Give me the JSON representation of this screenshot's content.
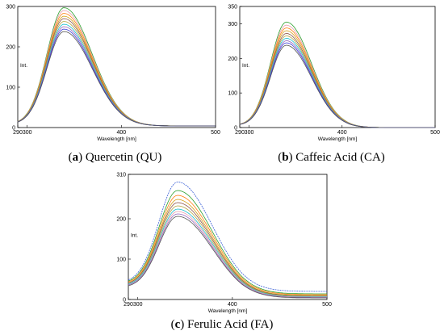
{
  "chart_data": [
    {
      "id": "qu",
      "type": "line",
      "panel_label": "a",
      "caption": "Quercetin (QU)",
      "xlabel": "Wavelength [nm]",
      "ylabel": "Int.",
      "xlim": [
        290,
        500
      ],
      "ylim": [
        0,
        300
      ],
      "xticks": [
        290,
        300,
        400,
        500
      ],
      "yticks": [
        0,
        100,
        200,
        300
      ],
      "peak_x": 339,
      "sigma_left": 18,
      "sigma_right": 30,
      "series": [
        {
          "color": "#2ca02c",
          "peak": 297,
          "baseline": 8,
          "tail": 4
        },
        {
          "color": "#e8a0b0",
          "peak": 290,
          "baseline": 8,
          "tail": 4
        },
        {
          "color": "#ff7f0e",
          "peak": 283,
          "baseline": 8,
          "tail": 4
        },
        {
          "color": "#d4a017",
          "peak": 276,
          "baseline": 8,
          "tail": 4
        },
        {
          "color": "#8c564b",
          "peak": 270,
          "baseline": 8,
          "tail": 4
        },
        {
          "color": "#b5a642",
          "peak": 263,
          "baseline": 8,
          "tail": 4
        },
        {
          "color": "#17becf",
          "peak": 256,
          "baseline": 8,
          "tail": 4
        },
        {
          "color": "#9467bd",
          "peak": 250,
          "baseline": 8,
          "tail": 4
        },
        {
          "color": "#3a3ad6",
          "peak": 244,
          "baseline": 8,
          "tail": 4
        },
        {
          "color": "#555555",
          "peak": 238,
          "baseline": 8,
          "tail": 4
        }
      ]
    },
    {
      "id": "ca",
      "type": "line",
      "panel_label": "b",
      "caption": "Caffeic Acid (CA)",
      "xlabel": "Wavelength [nm]",
      "ylabel": "Int.",
      "xlim": [
        290,
        500
      ],
      "ylim": [
        0,
        350
      ],
      "xticks": [
        290,
        300,
        400,
        500
      ],
      "yticks": [
        0,
        100,
        200,
        300,
        350
      ],
      "peak_x": 340,
      "sigma_left": 17,
      "sigma_right": 27,
      "series": [
        {
          "color": "#2ca02c",
          "peak": 305,
          "baseline": 6,
          "tail": 0
        },
        {
          "color": "#e8a0b0",
          "peak": 296,
          "baseline": 6,
          "tail": 0
        },
        {
          "color": "#ff7f0e",
          "peak": 288,
          "baseline": 6,
          "tail": 0
        },
        {
          "color": "#d4a017",
          "peak": 280,
          "baseline": 6,
          "tail": 0
        },
        {
          "color": "#8c564b",
          "peak": 272,
          "baseline": 6,
          "tail": 0
        },
        {
          "color": "#b5a642",
          "peak": 265,
          "baseline": 6,
          "tail": 0
        },
        {
          "color": "#17becf",
          "peak": 258,
          "baseline": 6,
          "tail": 0
        },
        {
          "color": "#9467bd",
          "peak": 251,
          "baseline": 6,
          "tail": 0
        },
        {
          "color": "#3a3ad6",
          "peak": 245,
          "baseline": 6,
          "tail": 0
        },
        {
          "color": "#555555",
          "peak": 238,
          "baseline": 6,
          "tail": 0
        }
      ]
    },
    {
      "id": "fa",
      "type": "line",
      "panel_label": "c",
      "caption": "Ferulic Acid (FA)",
      "xlabel": "Wavelength [nm]",
      "ylabel": "Int.",
      "xlim": [
        290,
        500
      ],
      "ylim": [
        0,
        310
      ],
      "xticks": [
        290,
        300,
        400,
        500
      ],
      "yticks": [
        0,
        100,
        200,
        310
      ],
      "peak_x": 342,
      "sigma_left": 20,
      "sigma_right": 36,
      "series": [
        {
          "color": "#3a5fd6",
          "peak": 291,
          "baseline": 40,
          "tail": 20
        },
        {
          "color": "#2ca02c",
          "peak": 270,
          "baseline": 38,
          "tail": 14
        },
        {
          "color": "#ff7f0e",
          "peak": 258,
          "baseline": 36,
          "tail": 12
        },
        {
          "color": "#d4a017",
          "peak": 248,
          "baseline": 34,
          "tail": 10
        },
        {
          "color": "#8c564b",
          "peak": 240,
          "baseline": 34,
          "tail": 9
        },
        {
          "color": "#b5a642",
          "peak": 232,
          "baseline": 32,
          "tail": 8
        },
        {
          "color": "#17becf",
          "peak": 224,
          "baseline": 32,
          "tail": 7
        },
        {
          "color": "#e8a0b0",
          "peak": 218,
          "baseline": 30,
          "tail": 6
        },
        {
          "color": "#9467bd",
          "peak": 212,
          "baseline": 30,
          "tail": 5
        },
        {
          "color": "#555555",
          "peak": 206,
          "baseline": 28,
          "tail": 4
        }
      ]
    }
  ]
}
